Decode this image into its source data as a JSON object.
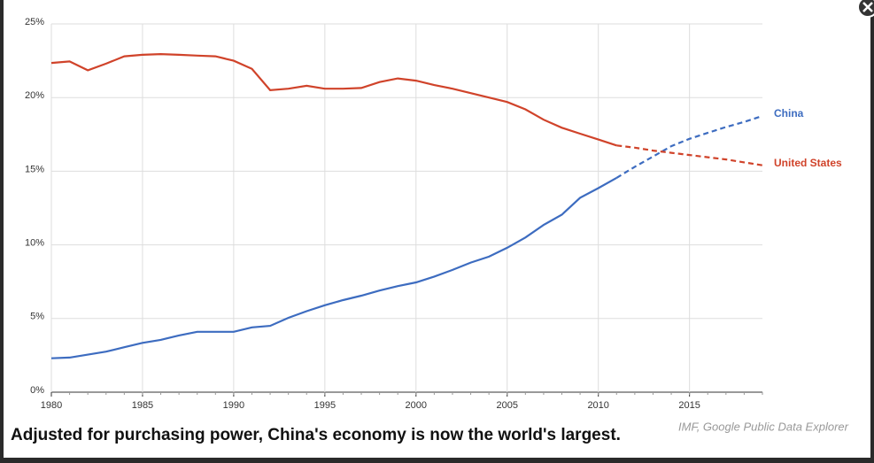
{
  "chart_data": {
    "type": "line",
    "title": "Adjusted for purchasing power, China's economy is now the world's largest.",
    "source": "IMF, Google Public Data Explorer",
    "x": [
      1980,
      1981,
      1982,
      1983,
      1984,
      1985,
      1986,
      1987,
      1988,
      1989,
      1990,
      1991,
      1992,
      1993,
      1994,
      1995,
      1996,
      1997,
      1998,
      1999,
      2000,
      2001,
      2002,
      2003,
      2004,
      2005,
      2006,
      2007,
      2008,
      2009,
      2010,
      2011,
      2012,
      2013,
      2014,
      2015,
      2016,
      2017,
      2018,
      2019
    ],
    "series": [
      {
        "name": "China",
        "color": "#3d6cc0",
        "values": [
          2.3,
          2.35,
          2.55,
          2.75,
          3.05,
          3.35,
          3.55,
          3.85,
          4.1,
          4.1,
          4.1,
          4.4,
          4.5,
          5.05,
          5.5,
          5.9,
          6.25,
          6.55,
          6.9,
          7.2,
          7.45,
          7.85,
          8.3,
          8.8,
          9.2,
          9.8,
          10.5,
          11.35,
          12.05,
          13.2,
          13.85,
          14.55,
          15.3,
          16.0,
          16.7,
          17.2,
          17.6,
          18.0,
          18.35,
          18.75
        ]
      },
      {
        "name": "United States",
        "color": "#d0432a",
        "values": [
          22.35,
          22.45,
          21.85,
          22.3,
          22.8,
          22.9,
          22.95,
          22.9,
          22.85,
          22.8,
          22.5,
          21.95,
          20.5,
          20.6,
          20.8,
          20.6,
          20.6,
          20.65,
          21.05,
          21.3,
          21.15,
          20.85,
          20.6,
          20.3,
          20.0,
          19.7,
          19.2,
          18.5,
          17.95,
          17.55,
          17.15,
          16.75,
          16.6,
          16.4,
          16.25,
          16.1,
          15.95,
          15.8,
          15.6,
          15.4
        ]
      }
    ],
    "projection_from": 2011,
    "xlim": [
      1980,
      2019
    ],
    "xticks": [
      1980,
      1985,
      1990,
      1995,
      2000,
      2005,
      2010,
      2015
    ],
    "ylim": [
      0,
      25
    ],
    "yticks": [
      {
        "value": 0,
        "label": "0%"
      },
      {
        "value": 5,
        "label": "5%"
      },
      {
        "value": 10,
        "label": "10%"
      },
      {
        "value": 15,
        "label": "15%"
      },
      {
        "value": 20,
        "label": "20%"
      },
      {
        "value": 25,
        "label": "25%"
      }
    ],
    "grid": true
  }
}
